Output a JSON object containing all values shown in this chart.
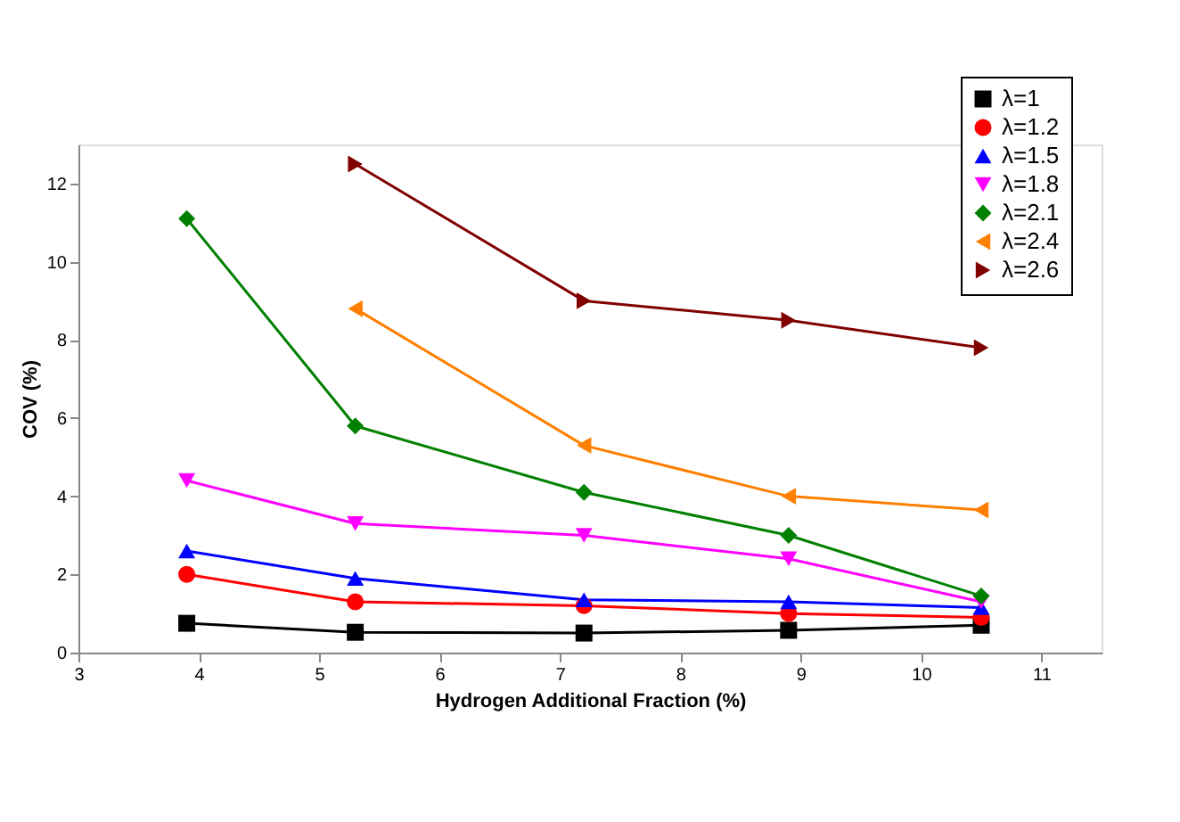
{
  "chart_data": {
    "type": "line",
    "xlabel": "Hydrogen Additional Fraction (%)",
    "ylabel": "COV (%)",
    "x": [
      3.9,
      5.3,
      7.2,
      8.9,
      10.5
    ],
    "xlim": [
      3,
      11.5
    ],
    "xticks": [
      3,
      4,
      5,
      6,
      7,
      8,
      9,
      10,
      11
    ],
    "ylim": [
      0,
      13
    ],
    "yticks": [
      0,
      2,
      4,
      6,
      8,
      10,
      12
    ],
    "grid": false,
    "legend": "top right",
    "line_style": "solid",
    "series": [
      {
        "name": "λ=1",
        "color": "#000000",
        "marker": "square",
        "values": [
          0.75,
          0.52,
          0.5,
          0.57,
          0.7
        ]
      },
      {
        "name": "λ=1.2",
        "color": "#ff0000",
        "marker": "circle",
        "values": [
          2.0,
          1.3,
          1.2,
          1.0,
          0.9
        ]
      },
      {
        "name": "λ=1.5",
        "color": "#0000ff",
        "marker": "triangle-up",
        "values": [
          2.6,
          1.9,
          1.35,
          1.3,
          1.15
        ]
      },
      {
        "name": "λ=1.8",
        "color": "#ff00ff",
        "marker": "triangle-down",
        "values": [
          4.4,
          3.3,
          3.0,
          2.4,
          1.3
        ]
      },
      {
        "name": "λ=2.1",
        "color": "#008000",
        "marker": "diamond",
        "values": [
          11.1,
          5.8,
          4.1,
          3.0,
          1.45
        ]
      },
      {
        "name": "λ=2.4",
        "color": "#ff8000",
        "marker": "triangle-left",
        "values": [
          null,
          8.8,
          5.3,
          4.0,
          3.65
        ]
      },
      {
        "name": "λ=2.6",
        "color": "#800000",
        "marker": "triangle-right",
        "values": [
          null,
          12.5,
          9.0,
          8.5,
          7.8
        ]
      }
    ]
  }
}
